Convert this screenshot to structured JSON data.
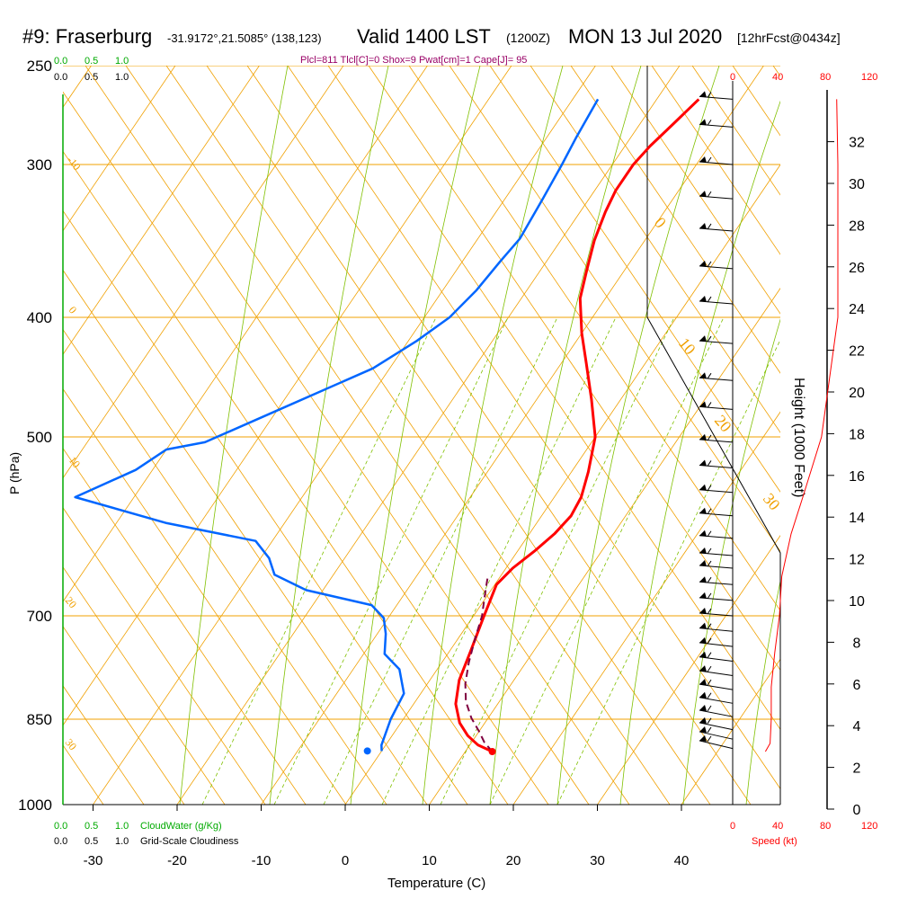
{
  "header": {
    "station": "#9: Fraserburg",
    "coords": "-31.9172°,21.5085° (138,123)",
    "valid": "Valid 1400 LST",
    "zulu": "(1200Z)",
    "date": "MON 13 Jul 2020",
    "forecast": "[12hrFcst@0434z]",
    "indices": "Plcl=811 Tlcl[C]=0 Shox=9 Pwat[cm]=1 Cape[J]= 95"
  },
  "colors": {
    "temperature": "#ff0000",
    "dewpoint": "#0066ff",
    "parcel": "#800040",
    "isobar": "#f0a000",
    "dry_adiabat": "#f0a000",
    "moist_adiabat": "#80c000",
    "mixing_ratio": "#80c000",
    "cloudwater": "#00aa00",
    "speed": "#ff0000",
    "indices": "#990066"
  },
  "cloud": {
    "cw_ticks": [
      "0.0",
      "0.5",
      "1.0"
    ],
    "gs_ticks": [
      "0.0",
      "0.5",
      "1.0"
    ],
    "cw_label": "CloudWater (g/Kg)",
    "gs_label": "Grid-Scale Cloudiness"
  },
  "speed_axis": {
    "ticks": [
      "0",
      "40",
      "80",
      "120"
    ],
    "label": "Speed (kt)"
  },
  "chart_data": {
    "type": "line",
    "subtype": "skew-t",
    "xlabel": "Temperature (C)",
    "ylabel": "P (hPa)",
    "ylabel2": "Height (1000 Feet)",
    "x_ticks": [
      -30,
      -20,
      -10,
      0,
      10,
      20,
      30,
      40
    ],
    "y_ticks": [
      250,
      300,
      400,
      500,
      700,
      850,
      1000
    ],
    "height_ticks": [
      0,
      2,
      4,
      6,
      8,
      10,
      12,
      14,
      16,
      18,
      20,
      22,
      24,
      26,
      28,
      30,
      32
    ],
    "dry_adiabat_labels": [
      "-10",
      "0",
      "10",
      "20",
      "30",
      "0",
      "10",
      "20",
      "30"
    ],
    "mixing_ratio_labels": [
      "1",
      "2",
      "3",
      "5",
      "8",
      "12",
      "20"
    ],
    "series": [
      {
        "name": "temperature",
        "points": [
          [
            13.2,
            904
          ],
          [
            11,
            893
          ],
          [
            9,
            877
          ],
          [
            7,
            856
          ],
          [
            5,
            826
          ],
          [
            3.5,
            790
          ],
          [
            2.5,
            748
          ],
          [
            1.3,
            702
          ],
          [
            0.2,
            660
          ],
          [
            0.8,
            640
          ],
          [
            2,
            620
          ],
          [
            3,
            600
          ],
          [
            3.5,
            580
          ],
          [
            3.2,
            560
          ],
          [
            2,
            534
          ],
          [
            0,
            500
          ],
          [
            -3.5,
            466
          ],
          [
            -7,
            436
          ],
          [
            -10,
            412
          ],
          [
            -13,
            386
          ],
          [
            -14.5,
            366
          ],
          [
            -16,
            346
          ],
          [
            -17,
            328
          ],
          [
            -17.5,
            315
          ],
          [
            -17.5,
            300
          ],
          [
            -17,
            290
          ],
          [
            -16,
            278
          ],
          [
            -15,
            266
          ]
        ]
      },
      {
        "name": "dewpoint",
        "points": [
          [
            0,
            903
          ],
          [
            -0.5,
            893
          ],
          [
            -1.5,
            850
          ],
          [
            -2,
            810
          ],
          [
            -4.5,
            774
          ],
          [
            -7.5,
            752
          ],
          [
            -9,
            724
          ],
          [
            -10.5,
            703
          ],
          [
            -13,
            686
          ],
          [
            -22,
            667
          ],
          [
            -27,
            648
          ],
          [
            -29,
            628
          ],
          [
            -32,
            608
          ],
          [
            -44,
            588
          ],
          [
            -57,
            560
          ],
          [
            -52,
            532
          ],
          [
            -50,
            512
          ],
          [
            -46,
            505
          ],
          [
            -40,
            476
          ],
          [
            -32,
            440
          ],
          [
            -29,
            418
          ],
          [
            -27,
            400
          ],
          [
            -26,
            380
          ],
          [
            -25.5,
            360
          ],
          [
            -25,
            345
          ],
          [
            -25.5,
            320
          ],
          [
            -26,
            300
          ],
          [
            -26.5,
            285
          ],
          [
            -27,
            266
          ]
        ]
      },
      {
        "name": "parcel",
        "points": [
          [
            13.2,
            904
          ],
          [
            11.5,
            888
          ],
          [
            10,
            870
          ],
          [
            8,
            848
          ],
          [
            6,
            822
          ],
          [
            4.5,
            795
          ],
          [
            3.2,
            764
          ],
          [
            2,
            730
          ],
          [
            1,
            700
          ],
          [
            0,
            680
          ],
          [
            -0.8,
            664
          ],
          [
            -1.5,
            650
          ]
        ]
      }
    ],
    "surface_dewpoint": [
      -1.7,
      903
    ],
    "speed_profile_kt": [
      [
        904,
        28
      ],
      [
        890,
        32
      ],
      [
        850,
        33
      ],
      [
        800,
        33
      ],
      [
        750,
        36
      ],
      [
        700,
        40
      ],
      [
        650,
        42
      ],
      [
        600,
        50
      ],
      [
        560,
        60
      ],
      [
        500,
        76
      ],
      [
        400,
        90
      ],
      [
        300,
        90
      ],
      [
        266,
        89
      ]
    ],
    "wind_levels_hpa": [
      266,
      280,
      300,
      320,
      340,
      365,
      390,
      420,
      450,
      475,
      505,
      530,
      555,
      580,
      605,
      625,
      640,
      660,
      680,
      700,
      720,
      740,
      760,
      780,
      800,
      820,
      840,
      860,
      875,
      890
    ]
  }
}
